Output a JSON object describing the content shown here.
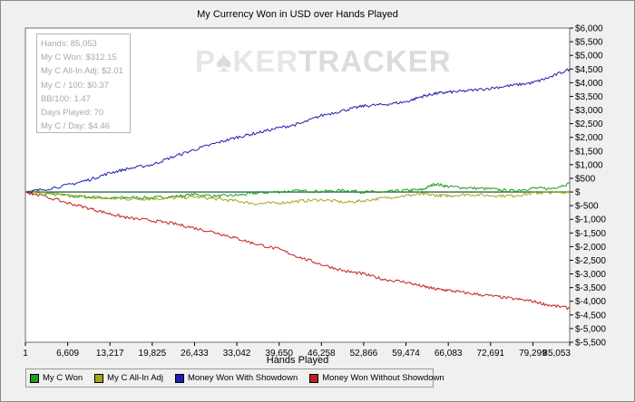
{
  "chart_data": {
    "type": "line",
    "title": "My Currency Won in USD over Hands Played",
    "xlabel": "Hands Played",
    "ylabel": "",
    "x_ticks": [
      "1",
      "6,609",
      "13,217",
      "19,825",
      "26,433",
      "33,042",
      "39,650",
      "46,258",
      "52,866",
      "59,474",
      "66,083",
      "72,691",
      "79,299",
      "85,053"
    ],
    "y_ticks": [
      "$6,000",
      "$5,500",
      "$5,000",
      "$4,500",
      "$4,000",
      "$3,500",
      "$3,000",
      "$2,500",
      "$2,000",
      "$1,500",
      "$1,000",
      "$500",
      "$",
      "$-500",
      "$-1,000",
      "$-1,500",
      "$-2,000",
      "$-2,500",
      "$-3,000",
      "$-3,500",
      "$-4,000",
      "$-4,500",
      "$-5,000",
      "$-5,500"
    ],
    "xlim": [
      1,
      85053
    ],
    "ylim": [
      -5500,
      6000
    ],
    "legend_position": "bottom",
    "x": [
      1,
      2000,
      6609,
      10000,
      13217,
      16000,
      19825,
      23000,
      26433,
      30000,
      33042,
      36000,
      39650,
      43000,
      46258,
      50000,
      52866,
      56000,
      59474,
      62000,
      64000,
      66083,
      69000,
      72691,
      76000,
      79299,
      82000,
      85053
    ],
    "series": [
      {
        "name": "My C Won",
        "color": "#1e9e1e",
        "values": [
          0,
          0,
          -150,
          -190,
          -230,
          -200,
          -210,
          -170,
          -90,
          -150,
          -120,
          -40,
          10,
          40,
          20,
          60,
          0,
          -10,
          60,
          80,
          300,
          200,
          150,
          110,
          40,
          140,
          120,
          310
        ]
      },
      {
        "name": "My C All-In Adj",
        "color": "#a6a61a",
        "values": [
          0,
          0,
          -130,
          -180,
          -230,
          -260,
          -250,
          -220,
          -180,
          -260,
          -330,
          -430,
          -400,
          -330,
          -280,
          -380,
          -320,
          -220,
          -130,
          -80,
          -120,
          -140,
          -90,
          -130,
          -140,
          -50,
          -20,
          0
        ]
      },
      {
        "name": "Money Won With Showdown",
        "color": "#1f1fb0",
        "values": [
          0,
          60,
          250,
          450,
          700,
          850,
          1000,
          1280,
          1550,
          1800,
          2000,
          2150,
          2350,
          2500,
          2800,
          3000,
          3150,
          3200,
          3300,
          3500,
          3600,
          3650,
          3700,
          3800,
          3900,
          4000,
          4200,
          4500
        ]
      },
      {
        "name": "Money Won Without Showdown",
        "color": "#c41e1e",
        "values": [
          0,
          -100,
          -400,
          -600,
          -800,
          -950,
          -1050,
          -1150,
          -1320,
          -1500,
          -1700,
          -1900,
          -2100,
          -2400,
          -2650,
          -2900,
          -3000,
          -3200,
          -3300,
          -3450,
          -3550,
          -3600,
          -3700,
          -3800,
          -3900,
          -4000,
          -4150,
          -4250
        ]
      }
    ]
  },
  "stats": [
    "Hands: 85,053",
    "My C Won: $312.15",
    "My C All-In Adj: $2.01",
    "My C / 100: $0.37",
    "BB/100: 1.47",
    "Days Played: 70",
    "My C / Day: $4.46"
  ],
  "watermark": {
    "part1": "P",
    "part2": "KER",
    "part3": "TRACKER"
  }
}
